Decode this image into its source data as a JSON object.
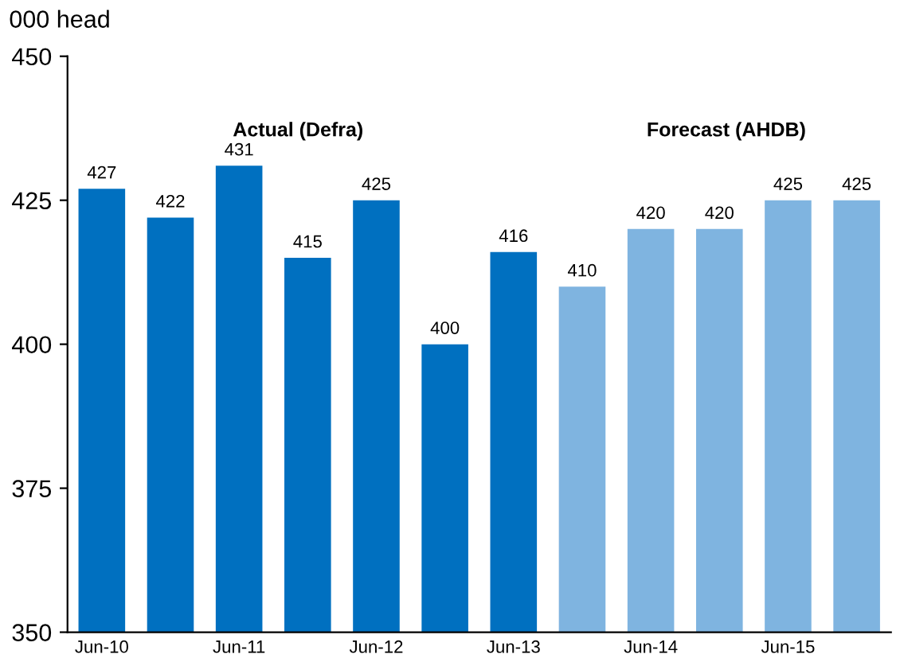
{
  "chart_data": {
    "type": "bar",
    "ylabel": "000 head",
    "categories": [
      "Jun-10",
      null,
      "Jun-11",
      null,
      "Jun-12",
      null,
      "Jun-13",
      null,
      "Jun-14",
      null,
      "Jun-15",
      null
    ],
    "values": [
      427,
      422,
      431,
      415,
      425,
      400,
      416,
      410,
      420,
      420,
      425,
      425
    ],
    "colors": [
      "#0070c0",
      "#0070c0",
      "#0070c0",
      "#0070c0",
      "#0070c0",
      "#0070c0",
      "#0070c0",
      "#7fb4e0",
      "#7fb4e0",
      "#7fb4e0",
      "#7fb4e0",
      "#7fb4e0"
    ],
    "ylim": [
      350,
      450
    ],
    "yticks": [
      350,
      375,
      400,
      425,
      450
    ],
    "grid": false,
    "data_labels": true,
    "annotations": [
      "Actual (Defra)",
      "Forecast (AHDB)"
    ]
  }
}
